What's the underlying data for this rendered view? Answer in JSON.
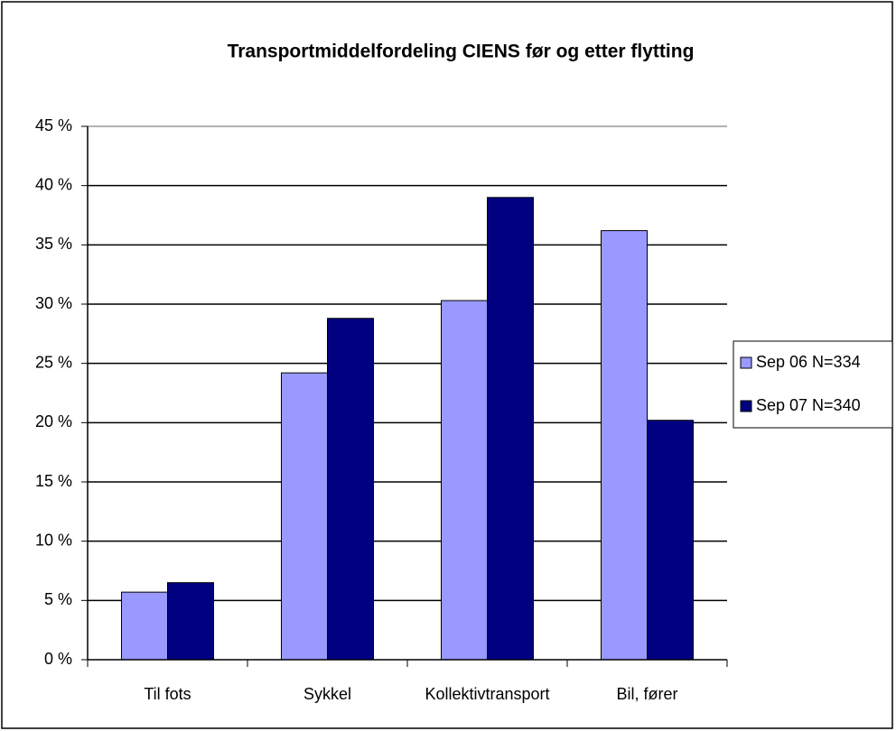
{
  "chart_data": {
    "type": "bar",
    "title": "Transportmiddelfordeling CIENS før og etter flytting",
    "categories": [
      "Til fots",
      "Sykkel",
      "Kollektivtransport",
      "Bil, fører"
    ],
    "series": [
      {
        "name": "Sep 06 N=334",
        "color": "#9999ff",
        "values": [
          5.7,
          24.2,
          30.3,
          36.2
        ]
      },
      {
        "name": "Sep 07 N=340",
        "color": "#000080",
        "values": [
          6.5,
          28.8,
          39.0,
          20.2
        ]
      }
    ],
    "ylim": [
      0,
      45
    ],
    "yticks": [
      {
        "value": 0,
        "label": "0 %"
      },
      {
        "value": 5,
        "label": "5 %"
      },
      {
        "value": 10,
        "label": "10 %"
      },
      {
        "value": 15,
        "label": "15 %"
      },
      {
        "value": 20,
        "label": "20 %"
      },
      {
        "value": 25,
        "label": "25 %"
      },
      {
        "value": 30,
        "label": "30 %"
      },
      {
        "value": 35,
        "label": "35 %"
      },
      {
        "value": 40,
        "label": "40 %"
      },
      {
        "value": 45,
        "label": "45 %"
      }
    ],
    "grid": true,
    "legend": "right"
  }
}
